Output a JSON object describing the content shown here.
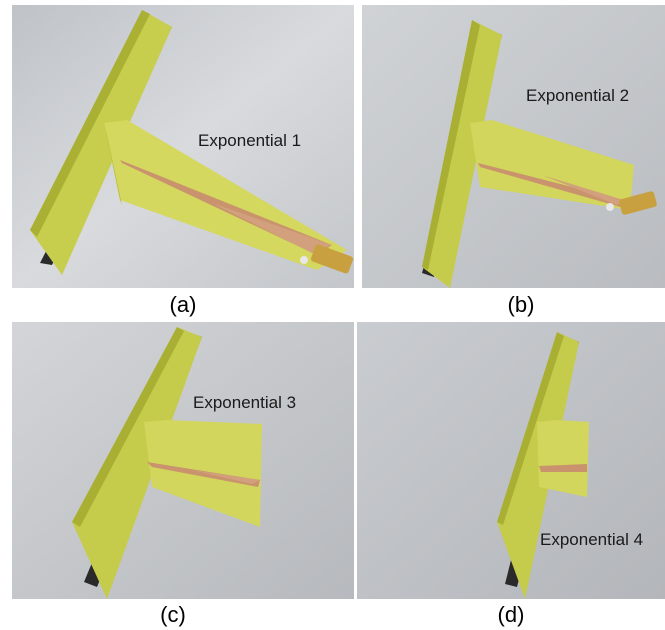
{
  "panels": [
    {
      "label": "Exponential 1",
      "caption": "(a)"
    },
    {
      "label": "Exponential 2",
      "caption": "(b)"
    },
    {
      "label": "Exponential 3",
      "caption": "(c)"
    },
    {
      "label": "Exponential 4",
      "caption": "(d)"
    }
  ],
  "colors": {
    "background": "#ffffff",
    "board": "#c9cf4a",
    "board_shadow": "#8f9628",
    "copper": "#c9946d",
    "connector": "#c8a040"
  }
}
